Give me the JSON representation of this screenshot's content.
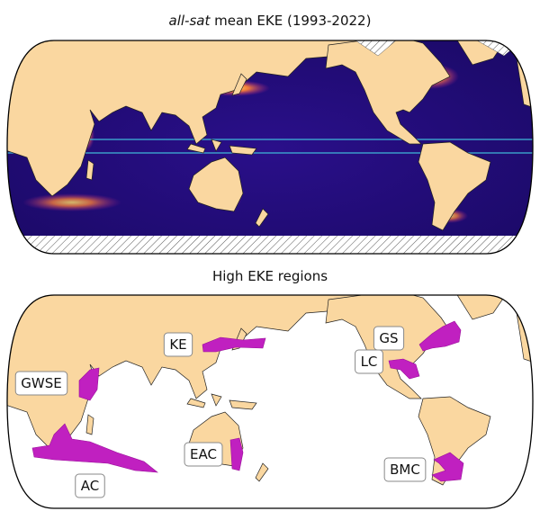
{
  "maps": [
    {
      "title_italic": "all-sat",
      "title_rest": "mean EKE (1993-2022)"
    },
    {
      "title": "High EKE regions",
      "regions": [
        {
          "label": "KE"
        },
        {
          "label": "GS"
        },
        {
          "label": "LC"
        },
        {
          "label": "GWSE"
        },
        {
          "label": "EAC"
        },
        {
          "label": "BMC"
        },
        {
          "label": "AC"
        }
      ]
    }
  ]
}
